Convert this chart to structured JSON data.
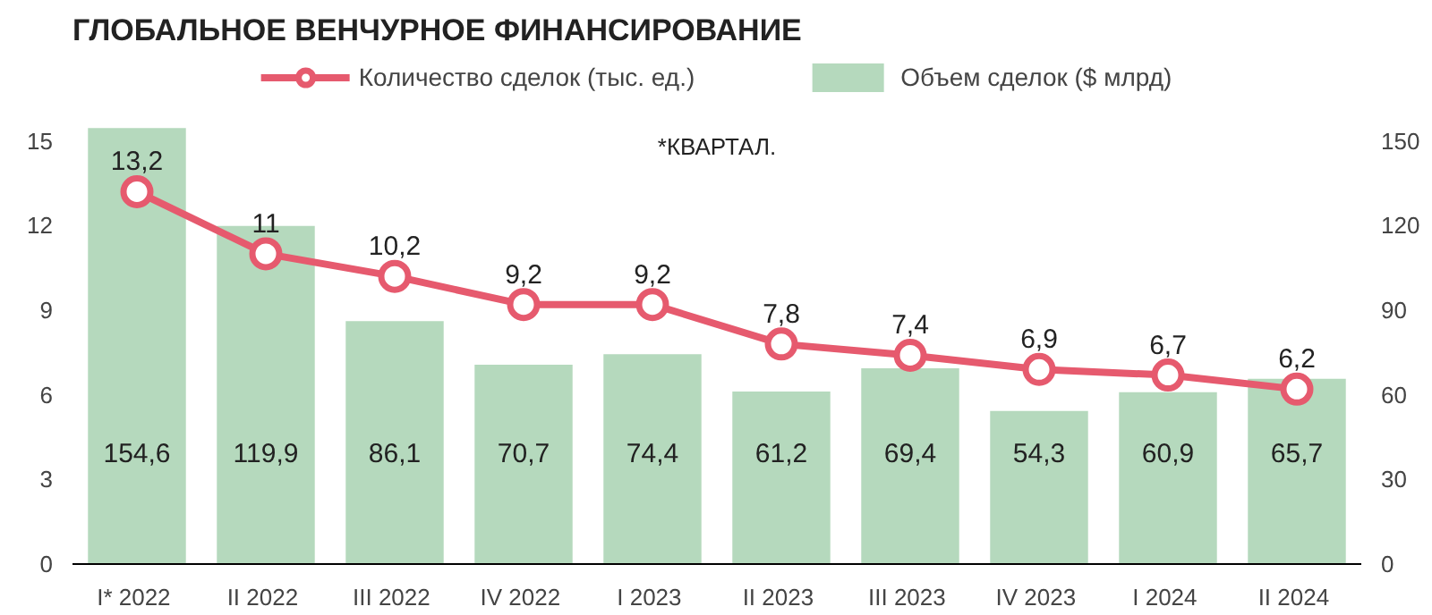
{
  "chart_data": {
    "type": "bar",
    "title": "ГЛОБАЛЬНОЕ ВЕНЧУРНОЕ ФИНАНСИРОВАНИЕ",
    "categories": [
      "I*  2022",
      "II  2022",
      "III  2022",
      "IV  2022",
      "I  2023",
      "II  2023",
      "III  2023",
      "IV  2023",
      "I  2024",
      "II  2024"
    ],
    "series": [
      {
        "name": "Количество сделок (тыс. ед.)",
        "type": "line",
        "color": "#e65a6e",
        "values": [
          13.2,
          11,
          10.2,
          9.2,
          9.2,
          7.8,
          7.4,
          6.9,
          6.7,
          6.2
        ],
        "value_labels": [
          "13,2",
          "11",
          "10,2",
          "9,2",
          "9,2",
          "7,8",
          "7,4",
          "6,9",
          "6,7",
          "6,2"
        ]
      },
      {
        "name": "Объем сделок ($ млрд)",
        "axis": "y2",
        "color": "#b5d9bd",
        "values": [
          154.6,
          119.9,
          86.1,
          70.7,
          74.4,
          61.2,
          69.4,
          54.3,
          60.9,
          65.7
        ],
        "value_labels": [
          "154,6",
          "119,9",
          "86,1",
          "70,7",
          "74,4",
          "61,2",
          "69,4",
          "54,3",
          "60,9",
          "65,7"
        ]
      }
    ],
    "marker": "circle",
    "line_style": "solid",
    "ylim": [
      0,
      18
    ],
    "yticks": [
      0,
      3,
      6,
      9,
      12,
      15
    ],
    "y2lim": [
      0,
      180
    ],
    "y2ticks": [
      0,
      30,
      60,
      90,
      120,
      150
    ],
    "legend": "top",
    "annotations": [
      "*КВАРТАЛ."
    ]
  }
}
